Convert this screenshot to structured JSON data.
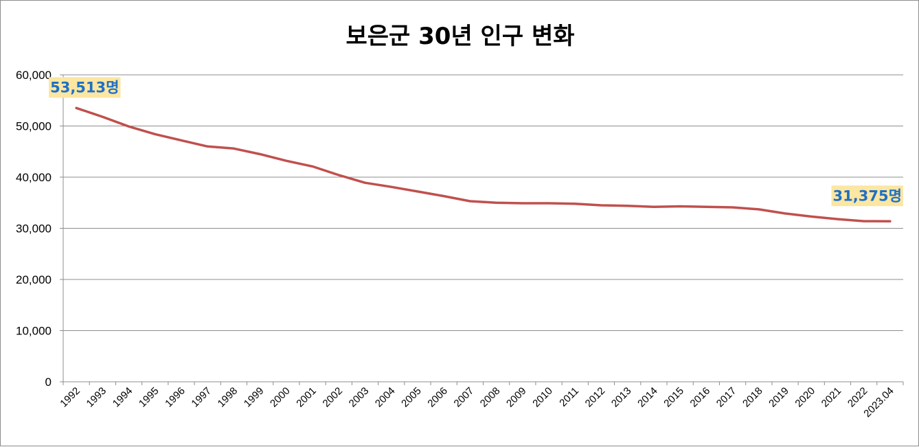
{
  "chart_data": {
    "type": "line",
    "title": "보은군 30년 인구 변화",
    "xlabel": "",
    "ylabel": "",
    "ylim": [
      0,
      60000
    ],
    "y_ticks": [
      "0",
      "10,000",
      "20,000",
      "30,000",
      "40,000",
      "50,000",
      "60,000"
    ],
    "y_tick_values": [
      0,
      10000,
      20000,
      30000,
      40000,
      50000,
      60000
    ],
    "grid": true,
    "legend": "none",
    "categories": [
      "1992",
      "1993",
      "1994",
      "1995",
      "1996",
      "1997",
      "1998",
      "1999",
      "2000",
      "2001",
      "2002",
      "2003",
      "2004",
      "2005",
      "2006",
      "2007",
      "2008",
      "2009",
      "2010",
      "2011",
      "2012",
      "2013",
      "2014",
      "2015",
      "2016",
      "2017",
      "2018",
      "2019",
      "2020",
      "2021",
      "2022",
      "2023.04"
    ],
    "series": [
      {
        "color": "#c0504d",
        "values": [
          53513,
          51800,
          49900,
          48400,
          47200,
          46000,
          45600,
          44500,
          43200,
          42100,
          40400,
          38900,
          38100,
          37200,
          36300,
          35300,
          35000,
          34900,
          34900,
          34800,
          34500,
          34400,
          34200,
          34300,
          34200,
          34100,
          33700,
          32900,
          32300,
          31800,
          31400,
          31375
        ]
      }
    ],
    "annotations": [
      {
        "text": "53,513명",
        "category": "1992",
        "value": 53513,
        "color": "#1f6fc5",
        "background": "#fbe6a2"
      },
      {
        "text": "31,375명",
        "category": "2023.04",
        "value": 31375,
        "color": "#1f6fc5",
        "background": "#fbe6a2"
      }
    ]
  }
}
